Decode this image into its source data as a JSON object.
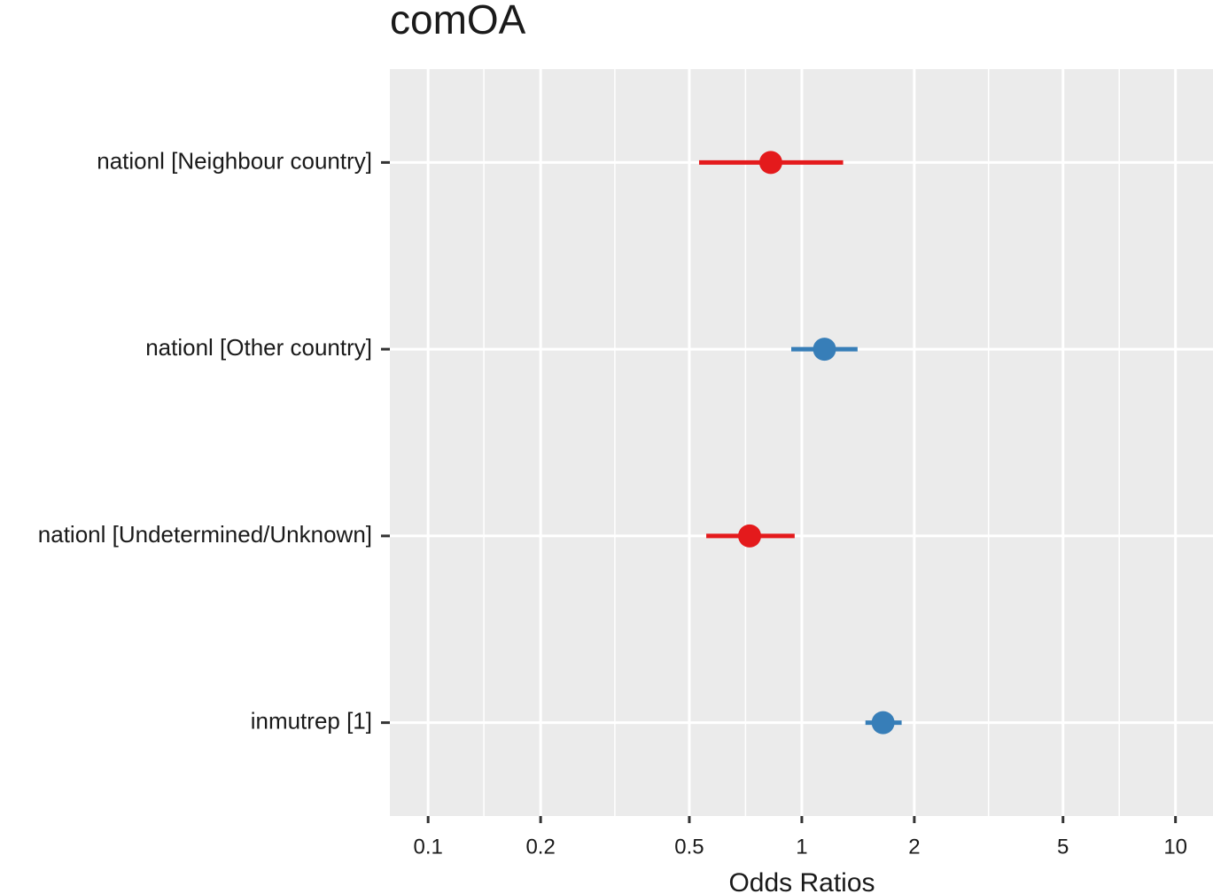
{
  "chart_data": {
    "type": "forest",
    "title": "comOA",
    "x_label": "Odds Ratios",
    "categories": [
      "nationl [Neighbour country]",
      "nationl [Other country]",
      "nationl [Undetermined/Unknown]",
      "inmutrep [1]"
    ],
    "values": [
      0.826,
      1.15,
      0.725,
      1.65
    ],
    "lower": [
      0.531,
      0.937,
      0.555,
      1.48
    ],
    "upper": [
      1.29,
      1.41,
      0.957,
      1.85
    ],
    "colors": [
      "#e41a1c",
      "#377eb8",
      "#e41a1c",
      "#377eb8"
    ],
    "log_x": true,
    "xlim": [
      0.079,
      12.6
    ],
    "xticks": [
      0.1,
      0.2,
      0.5,
      1,
      2,
      5,
      10
    ],
    "xminor": [
      0.141,
      0.316,
      0.707,
      3.16,
      7.07
    ],
    "grid": true
  }
}
